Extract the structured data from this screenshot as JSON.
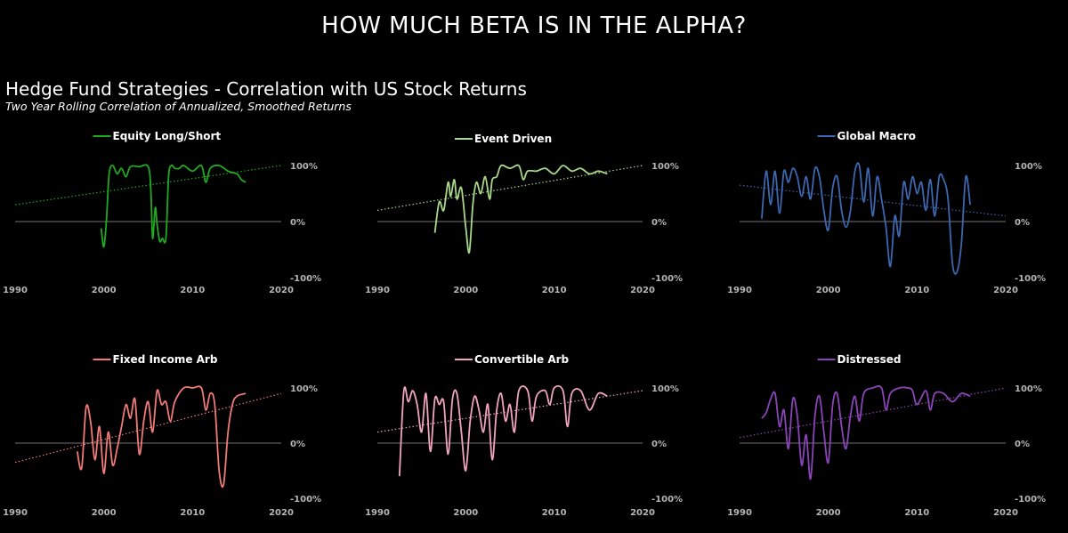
{
  "header": {
    "title": "HOW MUCH BETA IS IN THE ALPHA?",
    "subtitle": "Hedge Fund Strategies - Correlation with US Stock Returns",
    "caption": "Two Year Rolling Correlation of Annualized, Smoothed Returns"
  },
  "chart_data": [
    {
      "type": "line",
      "name": "Equity Long/Short",
      "color": "#1faa1f",
      "xlim": [
        1990,
        2020
      ],
      "ylim": [
        -100,
        100
      ],
      "xticks": [
        "1990",
        "2000",
        "2010",
        "2020"
      ],
      "yticks": [
        "100%",
        "0%",
        "-100%"
      ],
      "series": [
        {
          "name": "Equity Long/Short",
          "x": [
            1999.7,
            2000.0,
            2000.3,
            2000.6,
            2001,
            2001.5,
            2002,
            2002.5,
            2003,
            2004,
            2005,
            2005.3,
            2005.5,
            2005.8,
            2006,
            2006.3,
            2006.6,
            2007,
            2007.3,
            2007.6,
            2008,
            2008.5,
            2009,
            2010,
            2011,
            2011.5,
            2012,
            2013,
            2014,
            2015,
            2015.5,
            2016
          ],
          "y": [
            -12,
            -45,
            5,
            85,
            100,
            85,
            95,
            80,
            98,
            98,
            98,
            55,
            -30,
            25,
            -5,
            -35,
            -30,
            -30,
            80,
            100,
            95,
            95,
            100,
            90,
            100,
            70,
            95,
            100,
            90,
            85,
            75,
            70
          ]
        },
        {
          "name": "Trend",
          "x": [
            1990,
            2020
          ],
          "y": [
            30,
            100
          ]
        }
      ]
    },
    {
      "type": "line",
      "name": "Event Driven",
      "color": "#a8d98a",
      "xlim": [
        1990,
        2020
      ],
      "ylim": [
        -100,
        100
      ],
      "xticks": [
        "1990",
        "2000",
        "2010",
        "2020"
      ],
      "yticks": [
        "100%",
        "0%",
        "-100%"
      ],
      "series": [
        {
          "name": "Event Driven",
          "x": [
            1996.5,
            1997,
            1997.5,
            1998,
            1998.3,
            1998.7,
            1999,
            1999.5,
            2000,
            2000.4,
            2000.8,
            2001.2,
            2001.7,
            2002.2,
            2002.7,
            2003,
            2003.5,
            2004,
            2005,
            2006,
            2006.5,
            2007,
            2008,
            2009,
            2010,
            2011,
            2012,
            2013,
            2014,
            2015,
            2016
          ],
          "y": [
            -20,
            35,
            20,
            70,
            45,
            75,
            40,
            60,
            -10,
            -55,
            30,
            70,
            50,
            80,
            40,
            75,
            80,
            100,
            95,
            100,
            75,
            90,
            90,
            95,
            85,
            100,
            90,
            95,
            85,
            90,
            85
          ]
        },
        {
          "name": "Trend",
          "x": [
            1990,
            2020
          ],
          "y": [
            20,
            100
          ]
        }
      ]
    },
    {
      "type": "line",
      "name": "Global Macro",
      "color": "#3d67b0",
      "xlim": [
        1990,
        2020
      ],
      "ylim": [
        -100,
        100
      ],
      "xticks": [
        "1990",
        "2000",
        "2010",
        "2020"
      ],
      "yticks": [
        "100%",
        "0%",
        "-100%"
      ],
      "series": [
        {
          "name": "Global Macro",
          "x": [
            1992.5,
            1993,
            1993.5,
            1994,
            1994.5,
            1995,
            1995.5,
            1996,
            1996.5,
            1997,
            1997.5,
            1998,
            1998.5,
            1999,
            1999.5,
            2000,
            2000.5,
            2001,
            2001.5,
            2002,
            2002.5,
            2003,
            2003.5,
            2004,
            2004.5,
            2005,
            2005.5,
            2006,
            2006.5,
            2007,
            2007.5,
            2008,
            2008.5,
            2009,
            2009.5,
            2010,
            2010.5,
            2011,
            2011.5,
            2012,
            2012.5,
            2013,
            2013.5,
            2014,
            2014.5,
            2015,
            2015.5,
            2016
          ],
          "y": [
            5,
            90,
            30,
            90,
            15,
            90,
            70,
            95,
            80,
            45,
            80,
            40,
            95,
            80,
            20,
            -15,
            60,
            80,
            20,
            -10,
            20,
            90,
            100,
            35,
            95,
            10,
            80,
            40,
            -10,
            -80,
            10,
            -25,
            70,
            40,
            80,
            50,
            70,
            20,
            75,
            10,
            80,
            75,
            40,
            -75,
            -90,
            -40,
            80,
            30
          ]
        },
        {
          "name": "Trend",
          "x": [
            1990,
            2020
          ],
          "y": [
            65,
            10
          ]
        }
      ]
    },
    {
      "type": "line",
      "name": "Fixed Income Arb",
      "color": "#f07a78",
      "xlim": [
        1990,
        2020
      ],
      "ylim": [
        -100,
        100
      ],
      "xticks": [
        "1990",
        "2000",
        "2010",
        "2020"
      ],
      "yticks": [
        "100%",
        "0%",
        "-100%"
      ],
      "series": [
        {
          "name": "Fixed Income Arb",
          "x": [
            1997,
            1997.5,
            1998,
            1998.5,
            1999,
            1999.5,
            2000,
            2000.5,
            2001,
            2001.5,
            2002,
            2002.5,
            2003,
            2003.5,
            2004,
            2004.5,
            2005,
            2005.5,
            2006,
            2006.5,
            2007,
            2007.5,
            2008,
            2009,
            2010,
            2011,
            2011.5,
            2012,
            2012.5,
            2013,
            2013.5,
            2014,
            2014.5,
            2015,
            2016
          ],
          "y": [
            -15,
            -45,
            65,
            40,
            -30,
            30,
            -55,
            20,
            -40,
            -10,
            30,
            70,
            45,
            80,
            -20,
            40,
            75,
            20,
            95,
            70,
            75,
            40,
            75,
            100,
            100,
            100,
            60,
            90,
            70,
            -50,
            -75,
            20,
            70,
            85,
            90
          ]
        },
        {
          "name": "Trend",
          "x": [
            1990,
            2020
          ],
          "y": [
            -35,
            90
          ]
        }
      ]
    },
    {
      "type": "line",
      "name": "Convertible Arb",
      "color": "#f2a3bf",
      "xlim": [
        1990,
        2020
      ],
      "ylim": [
        -100,
        100
      ],
      "xticks": [
        "1990",
        "2000",
        "2010",
        "2020"
      ],
      "yticks": [
        "100%",
        "0%",
        "-100%"
      ],
      "series": [
        {
          "name": "Convertible Arb",
          "x": [
            1992.5,
            1993,
            1993.5,
            1994,
            1994.5,
            1995,
            1995.5,
            1996,
            1996.5,
            1997,
            1997.5,
            1998,
            1998.5,
            1999,
            1999.5,
            2000,
            2000.5,
            2001,
            2001.5,
            2002,
            2002.5,
            2003,
            2003.5,
            2004,
            2004.5,
            2005,
            2005.5,
            2006,
            2007,
            2007.5,
            2008,
            2009,
            2009.5,
            2010,
            2011,
            2011.5,
            2012,
            2013,
            2014,
            2015,
            2016
          ],
          "y": [
            -60,
            95,
            75,
            95,
            70,
            20,
            90,
            -15,
            80,
            70,
            75,
            -20,
            80,
            90,
            20,
            -50,
            40,
            85,
            60,
            20,
            70,
            -30,
            60,
            90,
            40,
            70,
            20,
            95,
            95,
            40,
            85,
            95,
            70,
            100,
            95,
            30,
            90,
            95,
            60,
            90,
            85
          ]
        },
        {
          "name": "Trend",
          "x": [
            1990,
            2020
          ],
          "y": [
            20,
            95
          ]
        }
      ]
    },
    {
      "type": "line",
      "name": "Distressed",
      "color": "#8b44b8",
      "xlim": [
        1990,
        2020
      ],
      "ylim": [
        -100,
        100
      ],
      "xticks": [
        "1990",
        "2000",
        "2010",
        "2020"
      ],
      "yticks": [
        "100%",
        "0%",
        "-100%"
      ],
      "series": [
        {
          "name": "Distressed",
          "x": [
            1992.5,
            1993,
            1993.5,
            1994,
            1994.5,
            1995,
            1995.5,
            1996,
            1996.5,
            1997,
            1997.5,
            1998,
            1998.5,
            1999,
            1999.5,
            2000,
            2000.5,
            2001,
            2001.5,
            2002,
            2002.5,
            2003,
            2003.5,
            2004,
            2005,
            2006,
            2006.5,
            2007,
            2008,
            2009,
            2009.5,
            2010,
            2011,
            2011.5,
            2012,
            2013,
            2014,
            2015,
            2016
          ],
          "y": [
            45,
            55,
            80,
            90,
            30,
            60,
            -10,
            80,
            50,
            -40,
            15,
            -65,
            50,
            85,
            20,
            -35,
            70,
            90,
            30,
            -10,
            50,
            85,
            40,
            90,
            100,
            100,
            60,
            90,
            100,
            100,
            95,
            70,
            95,
            60,
            90,
            90,
            75,
            90,
            85
          ]
        },
        {
          "name": "Trend",
          "x": [
            1990,
            2020
          ],
          "y": [
            10,
            100
          ]
        }
      ]
    }
  ]
}
